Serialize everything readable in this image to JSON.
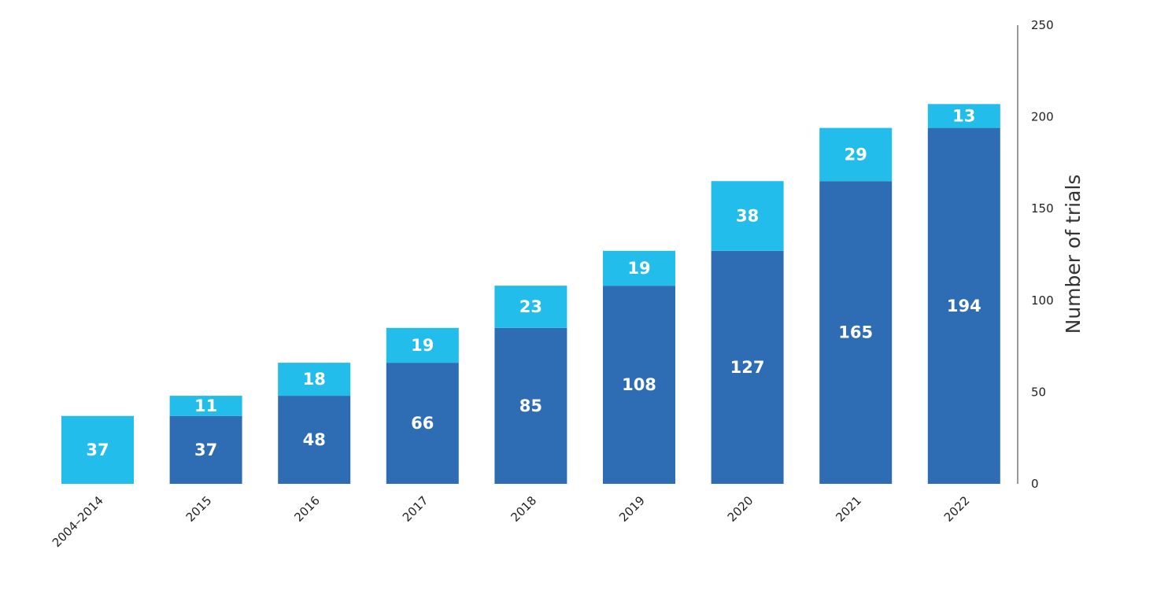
{
  "chart_data": {
    "type": "bar",
    "stacked": true,
    "categories": [
      "2004–2014",
      "2015",
      "2016",
      "2017",
      "2018",
      "2019",
      "2020",
      "2021",
      "2022"
    ],
    "series": [
      {
        "values": [
          0,
          37,
          48,
          66,
          85,
          108,
          127,
          165,
          194
        ],
        "color": "#2e6db3"
      },
      {
        "values": [
          37,
          11,
          18,
          19,
          23,
          19,
          38,
          29,
          13
        ],
        "color": "#22bdea"
      }
    ],
    "ylabel": "Number of trials",
    "ylim": [
      0,
      250
    ],
    "yticks": [
      0,
      50,
      100,
      150,
      200,
      250
    ],
    "yaxis_position": "right",
    "grid": false,
    "legend": "none"
  }
}
